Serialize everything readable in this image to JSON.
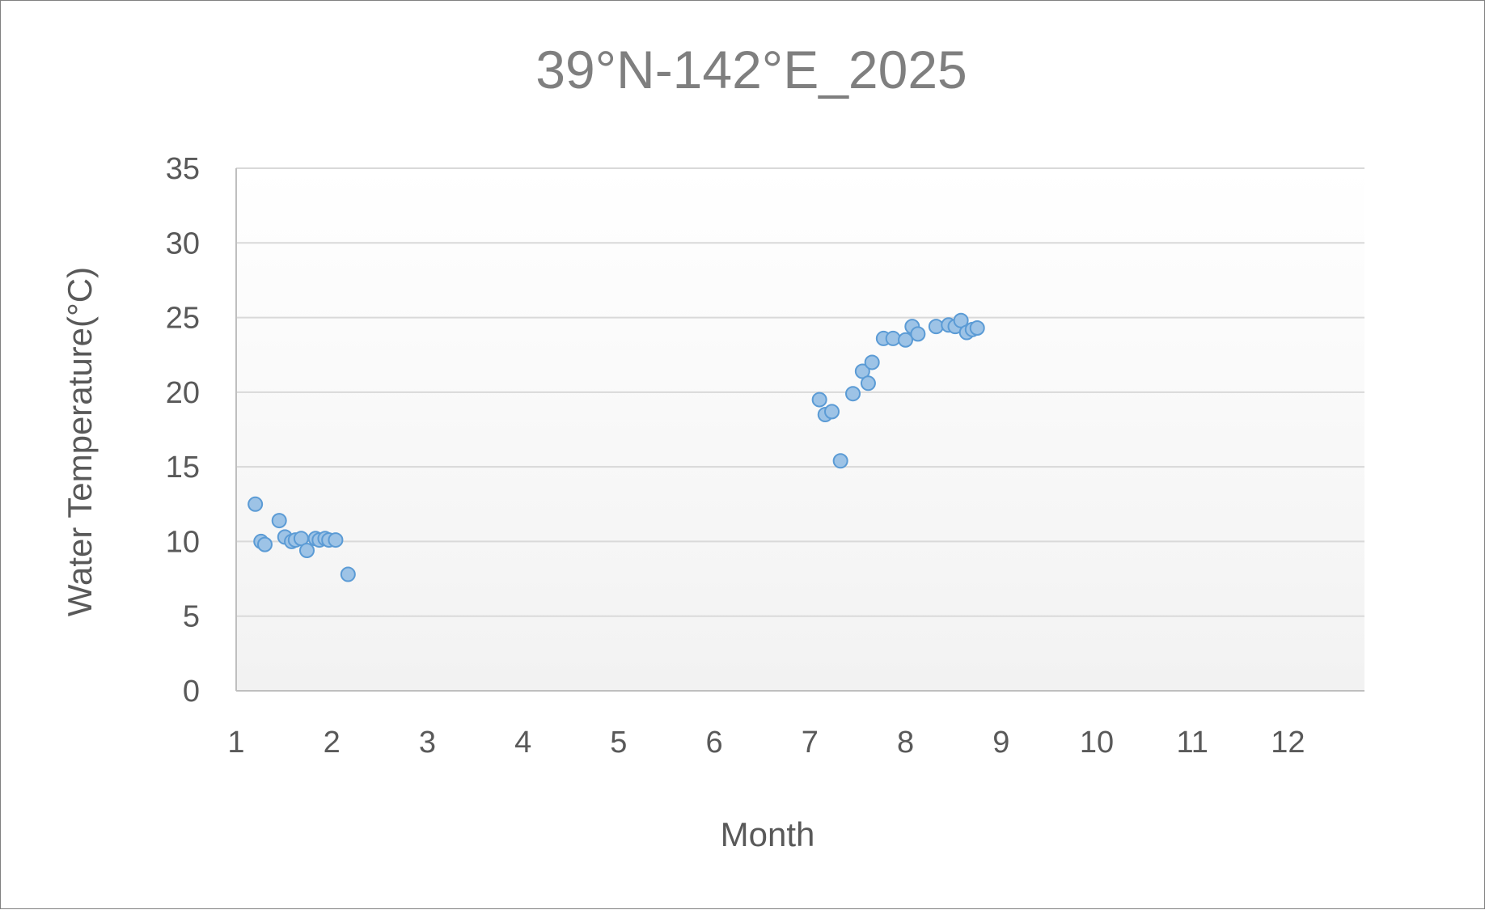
{
  "chart_data": {
    "type": "scatter",
    "title": "39°N-142°E_2025",
    "xlabel": "Month",
    "ylabel": "Water Temperature(°C)",
    "xlim": [
      1,
      12.8
    ],
    "ylim": [
      0,
      35
    ],
    "xticks": [
      1,
      2,
      3,
      4,
      5,
      6,
      7,
      8,
      9,
      10,
      11,
      12
    ],
    "yticks": [
      0,
      5,
      10,
      15,
      20,
      25,
      30,
      35
    ],
    "grid": "horizontal",
    "legend": "none",
    "colors": {
      "marker_fill": "#9dc3e6",
      "marker_edge": "#5b9bd5"
    },
    "series": [
      {
        "points": [
          {
            "x": 1.2,
            "y": 12.5
          },
          {
            "x": 1.26,
            "y": 10.0
          },
          {
            "x": 1.3,
            "y": 9.8
          },
          {
            "x": 1.45,
            "y": 11.4
          },
          {
            "x": 1.51,
            "y": 10.3
          },
          {
            "x": 1.58,
            "y": 10.0
          },
          {
            "x": 1.62,
            "y": 10.1
          },
          {
            "x": 1.68,
            "y": 10.2
          },
          {
            "x": 1.74,
            "y": 9.4
          },
          {
            "x": 1.83,
            "y": 10.2
          },
          {
            "x": 1.87,
            "y": 10.1
          },
          {
            "x": 1.93,
            "y": 10.2
          },
          {
            "x": 1.97,
            "y": 10.1
          },
          {
            "x": 2.04,
            "y": 10.1
          },
          {
            "x": 2.17,
            "y": 7.8
          },
          {
            "x": 7.1,
            "y": 19.5
          },
          {
            "x": 7.16,
            "y": 18.5
          },
          {
            "x": 7.23,
            "y": 18.7
          },
          {
            "x": 7.32,
            "y": 15.4
          },
          {
            "x": 7.45,
            "y": 19.9
          },
          {
            "x": 7.55,
            "y": 21.4
          },
          {
            "x": 7.61,
            "y": 20.6
          },
          {
            "x": 7.65,
            "y": 22.0
          },
          {
            "x": 7.77,
            "y": 23.6
          },
          {
            "x": 7.87,
            "y": 23.6
          },
          {
            "x": 8.0,
            "y": 23.5
          },
          {
            "x": 8.07,
            "y": 24.4
          },
          {
            "x": 8.13,
            "y": 23.9
          },
          {
            "x": 8.32,
            "y": 24.4
          },
          {
            "x": 8.45,
            "y": 24.5
          },
          {
            "x": 8.52,
            "y": 24.4
          },
          {
            "x": 8.58,
            "y": 24.8
          },
          {
            "x": 8.64,
            "y": 24.0
          },
          {
            "x": 8.7,
            "y": 24.2
          },
          {
            "x": 8.75,
            "y": 24.3
          }
        ]
      }
    ]
  }
}
